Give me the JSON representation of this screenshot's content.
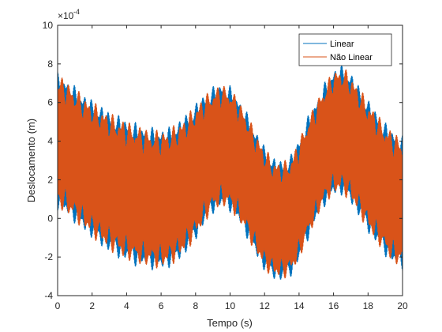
{
  "chart_data": {
    "type": "line",
    "title": "",
    "xlabel": "Tempo (s)",
    "ylabel": "Deslocamento (m)",
    "y_exponent_label": "×10",
    "y_exponent_power": "-4",
    "xlim": [
      0,
      20
    ],
    "ylim": [
      -4,
      10
    ],
    "x_scale": 1,
    "y_scale": 0.0001,
    "x_ticks": [
      0,
      2,
      4,
      6,
      8,
      10,
      12,
      14,
      16,
      18,
      20
    ],
    "y_ticks": [
      -4,
      -2,
      0,
      2,
      4,
      6,
      8,
      10
    ],
    "x_tick_labels": [
      "0",
      "2",
      "4",
      "6",
      "8",
      "10",
      "12",
      "14",
      "16",
      "18",
      "20"
    ],
    "y_tick_labels": [
      "-4",
      "-2",
      "0",
      "2",
      "4",
      "6",
      "8",
      "10"
    ],
    "grid": false,
    "legend_position": "top-right",
    "series": [
      {
        "name": "Linear",
        "color": "#0072BD",
        "envelope_x": [
          0,
          0.5,
          1,
          1.5,
          2,
          2.5,
          3,
          3.5,
          4,
          4.5,
          5,
          5.5,
          6,
          6.5,
          7,
          7.5,
          8,
          8.5,
          9,
          9.5,
          10,
          10.5,
          11,
          11.5,
          12,
          12.5,
          13,
          13.5,
          14,
          14.5,
          15,
          15.5,
          16,
          16.5,
          17,
          17.5,
          18,
          18.5,
          19,
          19.5,
          20
        ],
        "upper": [
          7.6,
          7.3,
          6.9,
          6.5,
          6.2,
          5.9,
          5.6,
          5.4,
          5.2,
          5.0,
          4.85,
          4.75,
          4.7,
          4.8,
          5.1,
          5.5,
          6.0,
          6.5,
          6.85,
          7.1,
          6.9,
          6.3,
          5.5,
          4.6,
          3.8,
          3.2,
          3.05,
          3.3,
          4.2,
          5.3,
          6.2,
          7.1,
          7.8,
          8.0,
          7.6,
          6.9,
          6.2,
          5.6,
          5.0,
          4.6,
          4.3
        ],
        "lower": [
          0.4,
          0.1,
          -0.3,
          -0.7,
          -1.1,
          -1.5,
          -1.8,
          -2.1,
          -2.3,
          -2.5,
          -2.6,
          -2.7,
          -2.75,
          -2.6,
          -2.3,
          -1.8,
          -1.2,
          -0.4,
          0.2,
          0.5,
          0.3,
          -0.3,
          -1.1,
          -2.0,
          -2.8,
          -3.2,
          -3.3,
          -3.1,
          -2.3,
          -1.2,
          -0.2,
          0.6,
          1.1,
          1.15,
          0.7,
          0.0,
          -0.8,
          -1.4,
          -2.0,
          -2.5,
          -2.7
        ]
      },
      {
        "name": "Não Linear",
        "color": "#D95319",
        "envelope_x": [
          0,
          0.5,
          1,
          1.5,
          2,
          2.5,
          3,
          3.5,
          4,
          4.5,
          5,
          5.5,
          6,
          6.5,
          7,
          7.5,
          8,
          8.5,
          9,
          9.5,
          10,
          10.5,
          11,
          11.5,
          12,
          12.5,
          13,
          13.5,
          14,
          14.5,
          15,
          15.5,
          16,
          16.5,
          17,
          17.5,
          18,
          18.5,
          19,
          19.5,
          20
        ],
        "upper": [
          7.5,
          7.2,
          6.8,
          6.4,
          6.1,
          5.8,
          5.5,
          5.3,
          5.1,
          4.9,
          4.75,
          4.65,
          4.6,
          4.7,
          5.0,
          5.4,
          5.9,
          6.4,
          6.75,
          7.0,
          6.8,
          6.2,
          5.4,
          4.5,
          3.7,
          3.1,
          2.95,
          3.2,
          4.1,
          5.2,
          6.1,
          7.0,
          7.7,
          7.9,
          7.5,
          6.8,
          6.1,
          5.5,
          4.9,
          4.5,
          4.2
        ],
        "lower": [
          0.5,
          0.2,
          -0.2,
          -0.6,
          -1.0,
          -1.4,
          -1.7,
          -2.0,
          -2.2,
          -2.4,
          -2.5,
          -2.6,
          -2.65,
          -2.5,
          -2.2,
          -1.7,
          -1.1,
          -0.3,
          0.3,
          0.6,
          0.4,
          -0.2,
          -1.0,
          -1.9,
          -2.7,
          -3.1,
          -3.2,
          -3.0,
          -2.2,
          -1.1,
          -0.1,
          0.7,
          1.2,
          1.25,
          0.8,
          0.1,
          -0.7,
          -1.3,
          -1.9,
          -2.4,
          -2.6
        ]
      }
    ]
  }
}
